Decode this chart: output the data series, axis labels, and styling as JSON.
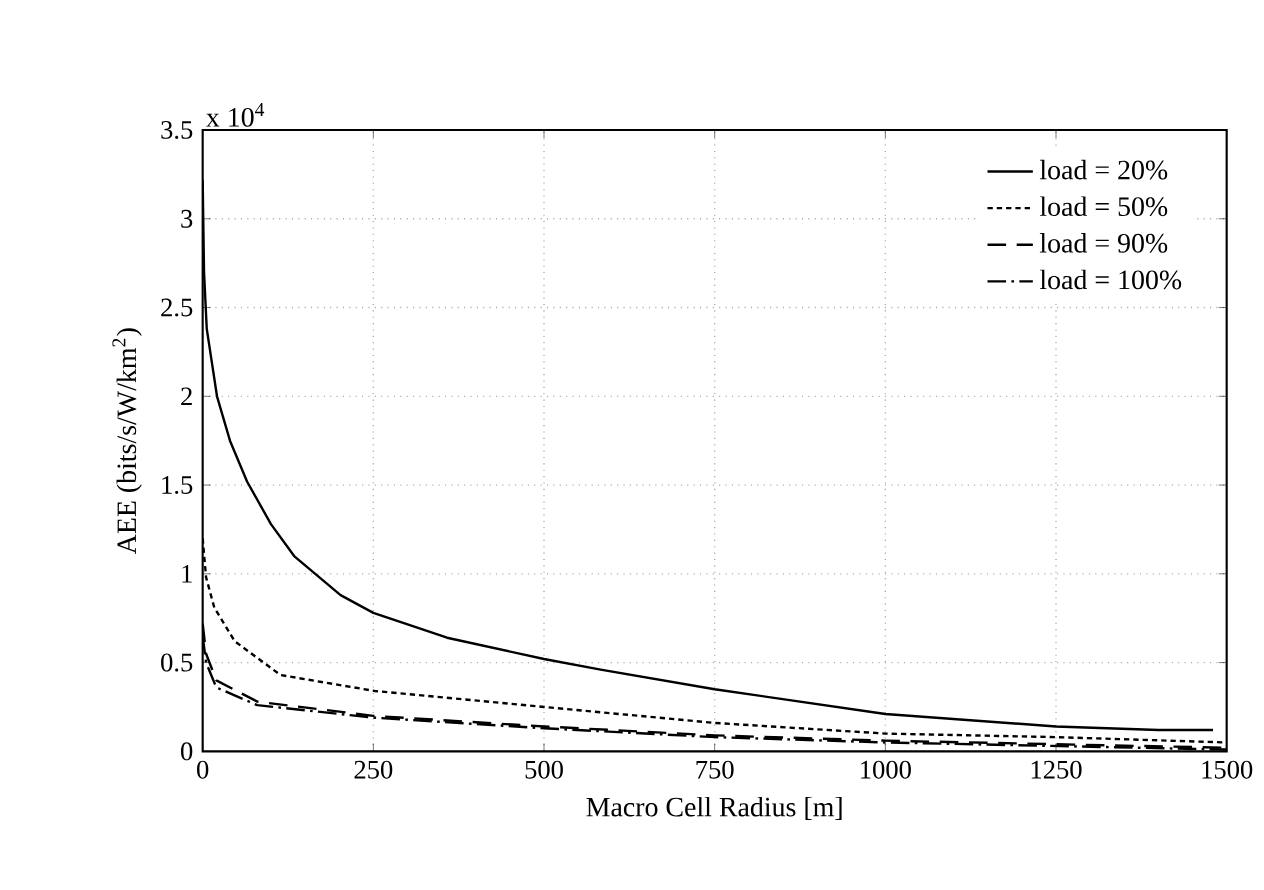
{
  "chart_data": {
    "type": "line",
    "xlabel": "Macro Cell Radius [m]",
    "ylabel": "AEE (bits/s/W/km$^{2}$)",
    "annotations": [
      "x 10$^{4}$"
    ],
    "xlim": [
      0,
      1500
    ],
    "xticks": [
      0,
      250,
      500,
      750,
      1000,
      1250,
      1500
    ],
    "ylim": [
      0,
      3.5
    ],
    "yticks": [
      0,
      0.5,
      1,
      1.5,
      2,
      2.5,
      3,
      3.5
    ],
    "grid": true,
    "legend": "top right",
    "marker": "none",
    "series": [
      {
        "name": "load = 20%",
        "color": "#000000",
        "line_style": "solid",
        "x": [
          0,
          2,
          6,
          21,
          40,
          65,
          100,
          134,
          202,
          250,
          358,
          500,
          583,
          750,
          1000,
          1250,
          1400,
          1480
        ],
        "values": [
          3.22,
          2.7,
          2.38,
          2.0,
          1.75,
          1.52,
          1.28,
          1.1,
          0.88,
          0.78,
          0.64,
          0.52,
          0.46,
          0.35,
          0.21,
          0.14,
          0.12,
          0.12
        ]
      },
      {
        "name": "load = 50%",
        "color": "#000000",
        "line_style": "dotted",
        "x": [
          0,
          5,
          17,
          47,
          114,
          252,
          500,
          750,
          1000,
          1250,
          1500
        ],
        "values": [
          1.2,
          0.98,
          0.81,
          0.62,
          0.43,
          0.34,
          0.25,
          0.16,
          0.1,
          0.08,
          0.05
        ]
      },
      {
        "name": "load = 90%",
        "color": "#000000",
        "line_style": "dashed",
        "x": [
          0,
          5,
          20,
          80,
          250,
          500,
          750,
          1000,
          1250,
          1500
        ],
        "values": [
          0.72,
          0.55,
          0.4,
          0.28,
          0.2,
          0.14,
          0.09,
          0.06,
          0.04,
          0.02
        ]
      },
      {
        "name": "load = 100%",
        "color": "#000000",
        "line_style": "dashdot",
        "x": [
          0,
          5,
          20,
          80,
          250,
          500,
          750,
          1000,
          1250,
          1500
        ],
        "values": [
          0.65,
          0.5,
          0.36,
          0.26,
          0.19,
          0.13,
          0.08,
          0.05,
          0.03,
          0.01
        ]
      }
    ]
  }
}
